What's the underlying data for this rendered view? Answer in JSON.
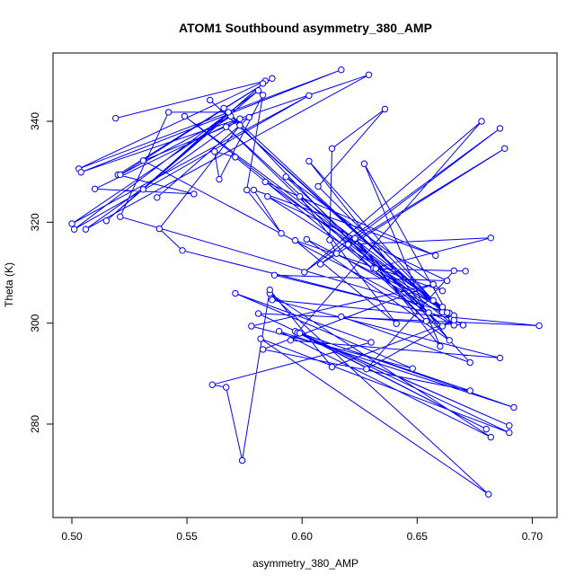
{
  "chart_data": {
    "type": "line",
    "title": "ATOM1 Southbound asymmetry_380_AMP",
    "xlabel": "asymmetry_380_AMP",
    "ylabel": "Theta (K)",
    "xlim": [
      0.5,
      0.7
    ],
    "ylim": [
      262,
      352
    ],
    "x_ticks": [
      "0.50",
      "0.55",
      "0.60",
      "0.65",
      "0.70"
    ],
    "y_ticks": [
      "280",
      "300",
      "320",
      "340"
    ],
    "grid": false,
    "legend": "none",
    "line_color": "#0000ff",
    "marker": "open-circle",
    "series": [
      {
        "points": [
          [
            0.519,
            340.6
          ],
          [
            0.584,
            348.0
          ],
          [
            0.503,
            330.6
          ],
          [
            0.617,
            350.2
          ],
          [
            0.504,
            329.9
          ],
          [
            0.629,
            349.2
          ],
          [
            0.506,
            318.6
          ],
          [
            0.573,
            340.5
          ],
          [
            0.51,
            326.6
          ],
          [
            0.553,
            325.6
          ],
          [
            0.52,
            329.4
          ],
          [
            0.587,
            348.5
          ],
          [
            0.521,
            329.4
          ],
          [
            0.569,
            341.0
          ],
          [
            0.5,
            319.7
          ],
          [
            0.603,
            345.1
          ],
          [
            0.501,
            318.6
          ],
          [
            0.581,
            346.1
          ],
          [
            0.515,
            320.3
          ],
          [
            0.583,
            347.5
          ],
          [
            0.531,
            326.5
          ],
          [
            0.568,
            341.8
          ],
          [
            0.542,
            341.8
          ],
          [
            0.521,
            321.1
          ],
          [
            0.664,
            302.0
          ],
          [
            0.549,
            341.0
          ],
          [
            0.666,
            299.6
          ],
          [
            0.531,
            332.2
          ],
          [
            0.577,
            340.8
          ],
          [
            0.537,
            324.9
          ],
          [
            0.573,
            339.2
          ],
          [
            0.538,
            318.7
          ],
          [
            0.548,
            314.4
          ],
          [
            0.665,
            300.9
          ],
          [
            0.56,
            344.2
          ],
          [
            0.661,
            302.2
          ],
          [
            0.566,
            342.6
          ],
          [
            0.654,
            300.4
          ],
          [
            0.567,
            338.9
          ],
          [
            0.661,
            299.4
          ],
          [
            0.571,
            332.9
          ],
          [
            0.562,
            334.0
          ],
          [
            0.564,
            328.5
          ],
          [
            0.583,
            345.2
          ],
          [
            0.576,
            326.4
          ],
          [
            0.591,
            317.8
          ],
          [
            0.579,
            326.4
          ],
          [
            0.658,
            313.4
          ],
          [
            0.584,
            328.0
          ],
          [
            0.666,
            301.5
          ],
          [
            0.585,
            325.1
          ],
          [
            0.663,
            308.4
          ],
          [
            0.588,
            309.5
          ],
          [
            0.655,
            302.1
          ],
          [
            0.593,
            329.0
          ],
          [
            0.661,
            306.4
          ],
          [
            0.597,
            316.4
          ],
          [
            0.641,
            299.9
          ],
          [
            0.599,
            325.1
          ],
          [
            0.661,
            303.2
          ],
          [
            0.602,
            316.6
          ],
          [
            0.664,
            296.6
          ],
          [
            0.603,
            332.1
          ],
          [
            0.657,
            304.5
          ],
          [
            0.607,
            327.1
          ],
          [
            0.636,
            342.4
          ],
          [
            0.613,
            334.6
          ],
          [
            0.612,
            316.5
          ],
          [
            0.615,
            313.8
          ],
          [
            0.67,
            299.6
          ],
          [
            0.617,
            301.3
          ],
          [
            0.673,
            292.2
          ],
          [
            0.623,
            316.8
          ],
          [
            0.66,
            295.4
          ],
          [
            0.627,
            331.6
          ],
          [
            0.663,
            302.1
          ],
          [
            0.631,
            310.9
          ],
          [
            0.682,
            316.9
          ],
          [
            0.62,
            315.6
          ],
          [
            0.688,
            334.6
          ],
          [
            0.608,
            311.7
          ],
          [
            0.686,
            338.6
          ],
          [
            0.601,
            310.1
          ],
          [
            0.678,
            340.0
          ],
          [
            0.595,
            296.6
          ],
          [
            0.686,
            293.1
          ],
          [
            0.587,
            304.6
          ],
          [
            0.703,
            299.5
          ],
          [
            0.581,
            301.9
          ],
          [
            0.69,
            278.3
          ],
          [
            0.582,
            296.9
          ],
          [
            0.681,
            266.1
          ],
          [
            0.586,
            305.9
          ],
          [
            0.682,
            277.4
          ],
          [
            0.59,
            298.4
          ],
          [
            0.692,
            283.3
          ],
          [
            0.597,
            298.4
          ],
          [
            0.69,
            279.7
          ],
          [
            0.598,
            298.1
          ],
          [
            0.68,
            279.0
          ],
          [
            0.599,
            298.0
          ],
          [
            0.673,
            286.6
          ],
          [
            0.583,
            294.8
          ],
          [
            0.657,
            307.7
          ],
          [
            0.578,
            299.4
          ],
          [
            0.648,
            291.0
          ],
          [
            0.571,
            305.9
          ],
          [
            0.63,
            296.2
          ],
          [
            0.561,
            287.8
          ],
          [
            0.567,
            287.3
          ],
          [
            0.574,
            272.8
          ],
          [
            0.586,
            306.6
          ],
          [
            0.613,
            291.3
          ],
          [
            0.666,
            300.6
          ],
          [
            0.628,
            290.9
          ],
          [
            0.666,
            310.4
          ],
          [
            0.632,
            310.8
          ],
          [
            0.671,
            310.3
          ]
        ]
      }
    ]
  }
}
